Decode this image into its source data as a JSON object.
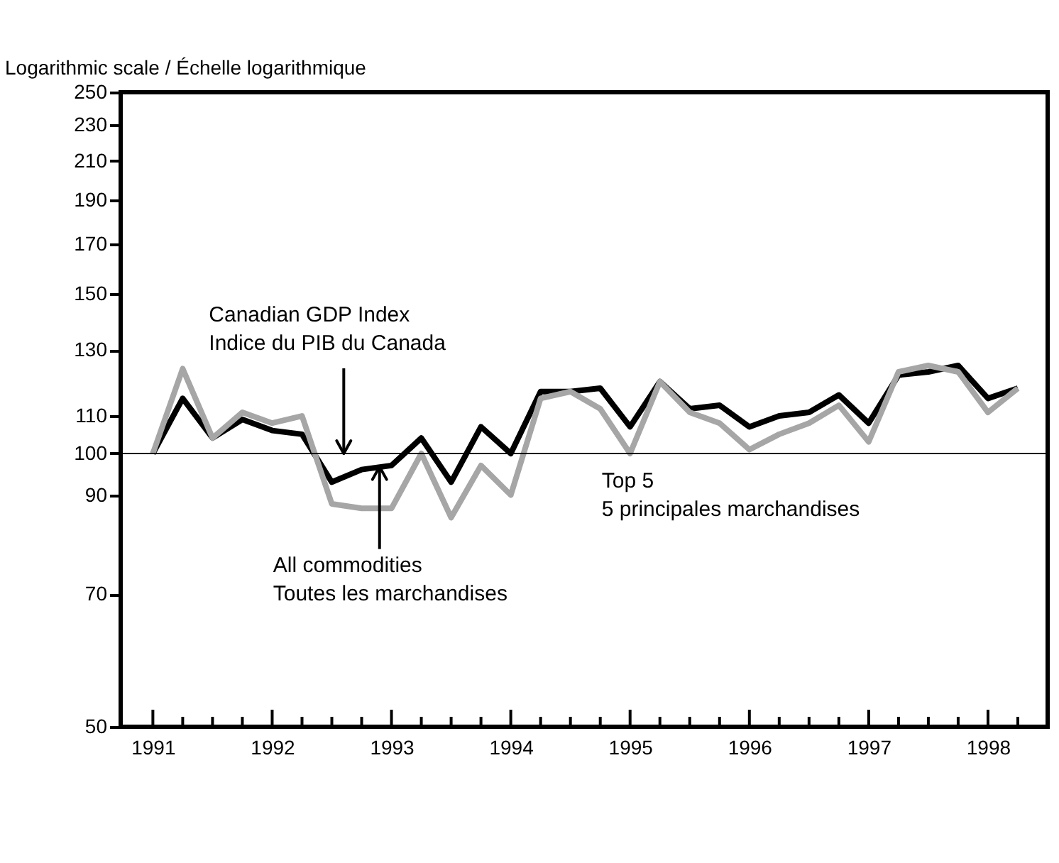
{
  "chart_data": {
    "type": "line",
    "ylabel": "Logarithmic scale / Échelle logarithmique",
    "x": [
      1991,
      1991.25,
      1991.5,
      1991.75,
      1992,
      1992.25,
      1992.5,
      1992.75,
      1993,
      1993.25,
      1993.5,
      1993.75,
      1994,
      1994.25,
      1994.5,
      1994.75,
      1995,
      1995.25,
      1995.5,
      1995.75,
      1996,
      1996.25,
      1996.5,
      1996.75,
      1997,
      1997.25,
      1997.5,
      1997.75,
      1998,
      1998.25
    ],
    "series": [
      {
        "color": "#000000",
        "values": [
          100,
          115,
          104,
          109,
          106,
          105,
          93,
          96,
          97,
          104,
          93,
          107,
          100,
          117,
          117,
          118,
          107,
          120,
          112,
          113,
          107,
          110,
          111,
          116,
          108,
          122,
          123,
          125,
          115,
          118
        ]
      },
      {
        "color": "#a6a6a6",
        "values": [
          100,
          124,
          104,
          111,
          108,
          110,
          88,
          87,
          87,
          100,
          85,
          97,
          90,
          115,
          117,
          112,
          100,
          120,
          111,
          108,
          101,
          105,
          108,
          113,
          103,
          123,
          125,
          123,
          111,
          118
        ]
      }
    ],
    "log": true,
    "xlim": [
      1990.73,
      1998.5
    ],
    "xticks": [
      1991,
      {
        "value": 1991.25,
        "label": null
      },
      {
        "value": 1991.5,
        "label": null
      },
      {
        "value": 1991.75,
        "label": null
      },
      1992,
      {
        "value": 1992.25,
        "label": null
      },
      {
        "value": 1992.5,
        "label": null
      },
      {
        "value": 1992.75,
        "label": null
      },
      1993,
      {
        "value": 1993.25,
        "label": null
      },
      {
        "value": 1993.5,
        "label": null
      },
      {
        "value": 1993.75,
        "label": null
      },
      1994,
      {
        "value": 1994.25,
        "label": null
      },
      {
        "value": 1994.5,
        "label": null
      },
      {
        "value": 1994.75,
        "label": null
      },
      1995,
      {
        "value": 1995.25,
        "label": null
      },
      {
        "value": 1995.5,
        "label": null
      },
      {
        "value": 1995.75,
        "label": null
      },
      1996,
      {
        "value": 1996.25,
        "label": null
      },
      {
        "value": 1996.5,
        "label": null
      },
      {
        "value": 1996.75,
        "label": null
      },
      1997,
      {
        "value": 1997.25,
        "label": null
      },
      {
        "value": 1997.5,
        "label": null
      },
      {
        "value": 1997.75,
        "label": null
      },
      1998,
      {
        "value": 1998.25,
        "label": null
      }
    ],
    "ylim": [
      50,
      250
    ],
    "yticks": [
      50,
      70,
      90,
      100,
      110,
      130,
      150,
      170,
      190,
      210,
      230,
      250
    ],
    "ref_lines": [
      {
        "axis": "y",
        "value": 100,
        "color": "#000000"
      }
    ],
    "annotations": [
      {
        "text": "Canadian GDP Index\nIndice du PIB du Canada",
        "x": 1992.6,
        "y": 100
      },
      {
        "text": "All commodities\nToutes les marchandises",
        "x": 1992.9,
        "y": 96.7
      },
      {
        "text": "Top 5\n5 principales marchandises",
        "x": 1995,
        "y": 100
      }
    ],
    "line_style": "solid"
  }
}
